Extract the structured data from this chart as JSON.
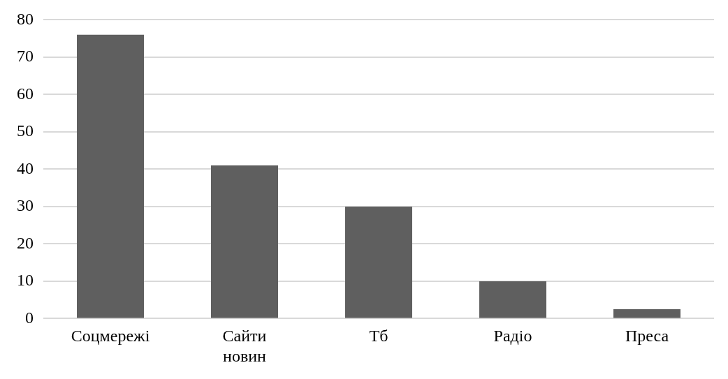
{
  "chart_data": {
    "type": "bar",
    "categories": [
      "Соцмережі",
      "Сайти новин",
      "Тб",
      "Радіо",
      "Преса"
    ],
    "values": [
      76,
      41,
      30,
      10,
      2.5
    ],
    "color": "#5f5f5f",
    "ylim": [
      0,
      80
    ],
    "yticks": [
      0,
      10,
      20,
      30,
      40,
      50,
      60,
      70,
      80
    ],
    "grid": "y",
    "legend": false
  }
}
